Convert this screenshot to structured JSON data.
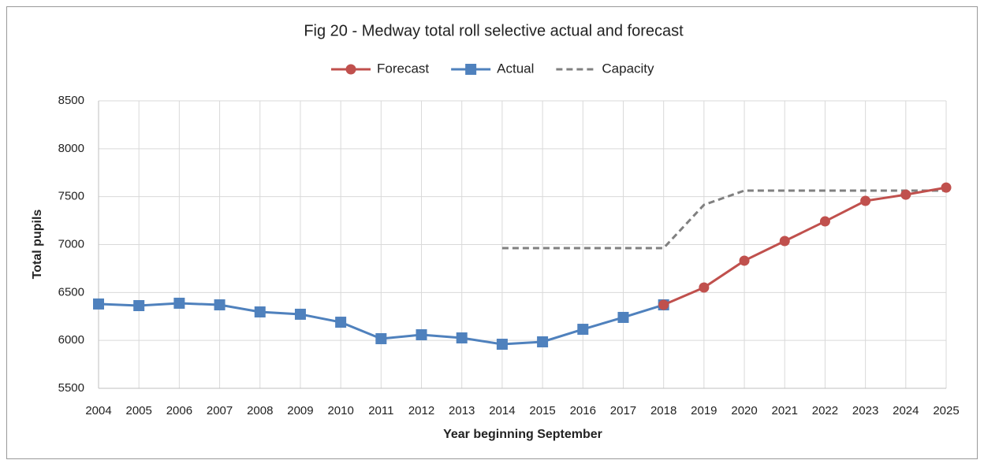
{
  "chart_data": {
    "type": "line",
    "title": "Fig 20 - Medway total roll selective actual and forecast",
    "x_label": "Year beginning September",
    "y_label": "Total pupils",
    "categories": [
      "2004",
      "2005",
      "2006",
      "2007",
      "2008",
      "2009",
      "2010",
      "2011",
      "2012",
      "2013",
      "2014",
      "2015",
      "2016",
      "2017",
      "2018",
      "2019",
      "2020",
      "2021",
      "2022",
      "2023",
      "2024",
      "2025"
    ],
    "series": [
      {
        "name": "Forecast",
        "color": "#c0504d",
        "marker": "circle",
        "line_style": "solid",
        "values": [
          null,
          null,
          null,
          null,
          null,
          null,
          null,
          null,
          null,
          null,
          null,
          null,
          null,
          null,
          6371,
          6552,
          6832,
          7037,
          7242,
          7456,
          7521,
          7595
        ]
      },
      {
        "name": "Actual",
        "color": "#4f81bd",
        "marker": "square",
        "line_style": "solid",
        "values": [
          6380,
          6363,
          6388,
          6371,
          6297,
          6273,
          6190,
          6018,
          6059,
          6026,
          5960,
          5985,
          6116,
          6240,
          6371,
          null,
          null,
          null,
          null,
          null,
          null,
          null
        ]
      },
      {
        "name": "Capacity",
        "color": "#808080",
        "marker": null,
        "line_style": "dashed",
        "values": [
          null,
          null,
          null,
          null,
          null,
          null,
          null,
          null,
          null,
          null,
          6963,
          6963,
          6963,
          6963,
          6963,
          7415,
          7563,
          7563,
          7563,
          7563,
          7563,
          7563
        ]
      }
    ],
    "ylim": [
      5500,
      8500
    ],
    "yticks": [
      5500,
      6000,
      6500,
      7000,
      7500,
      8000,
      8500
    ],
    "grid": true,
    "legend": "top"
  }
}
